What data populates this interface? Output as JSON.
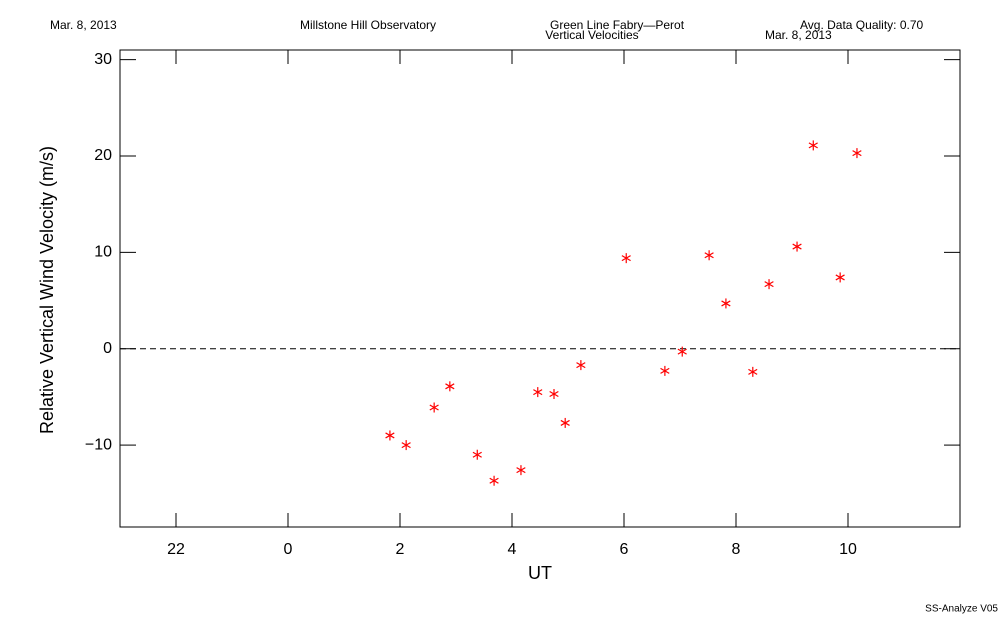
{
  "chart_data": {
    "type": "scatter",
    "title": "Vertical Velocities",
    "annotations": [
      "Mar. 8, 2013",
      "Millstone Hill Observatory",
      "Green Line Fabry—Perot",
      "Avg. Data Quality: 0.70",
      "Mar. 8, 2013"
    ],
    "footer": "SS-Analyze V05",
    "xlabel": "UT",
    "ylabel": "Relative Vertical Wind Velocity (m/s)",
    "xlim": [
      -3,
      12
    ],
    "ylim": [
      -18.5,
      31
    ],
    "xticks": [
      {
        "value": -2,
        "label": "22"
      },
      0,
      2,
      4,
      6,
      8,
      10
    ],
    "yticks": [
      {
        "value": -10,
        "label": "−10"
      },
      0,
      10,
      20,
      30
    ],
    "zero_line": 0,
    "color": "#ff0000",
    "x": [
      1.82,
      2.11,
      2.61,
      2.89,
      3.38,
      3.68,
      4.16,
      4.46,
      4.75,
      4.95,
      5.23,
      6.04,
      6.73,
      7.04,
      7.52,
      7.82,
      8.3,
      8.59,
      9.09,
      9.38,
      9.86,
      10.16
    ],
    "values": [
      -9.0,
      -10.0,
      -6.1,
      -3.9,
      -11.0,
      -13.7,
      -12.6,
      -4.5,
      -4.7,
      -7.7,
      -1.7,
      9.4,
      -2.3,
      -0.3,
      9.7,
      4.7,
      -2.4,
      6.7,
      10.6,
      21.1,
      7.4,
      20.3
    ]
  }
}
